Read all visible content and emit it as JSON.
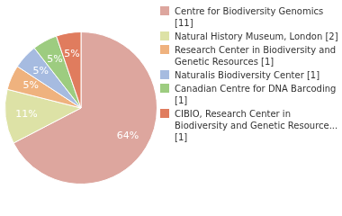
{
  "chart_data": {
    "type": "pie",
    "categories": [
      "Centre for Biodiversity Genomics [11]",
      "Natural History Museum, London [2]",
      "Research Center in Biodiversity and Genetic Resources [1]",
      "Naturalis Biodiversity Center [1]",
      "Canadian Centre for DNA Barcoding [1]",
      "CIBIO, Research Center in Biodiversity and Genetic Resource... [1]"
    ],
    "values": [
      64,
      11,
      5,
      5,
      5,
      5
    ],
    "value_labels": [
      "64%",
      "11%",
      "5%",
      "5%",
      "5%",
      "5%"
    ],
    "colors": [
      "#dda69e",
      "#dde2a6",
      "#efb27e",
      "#a6bbe0",
      "#9dcc80",
      "#e07c5e"
    ],
    "data_labels": true,
    "legend": "right"
  }
}
